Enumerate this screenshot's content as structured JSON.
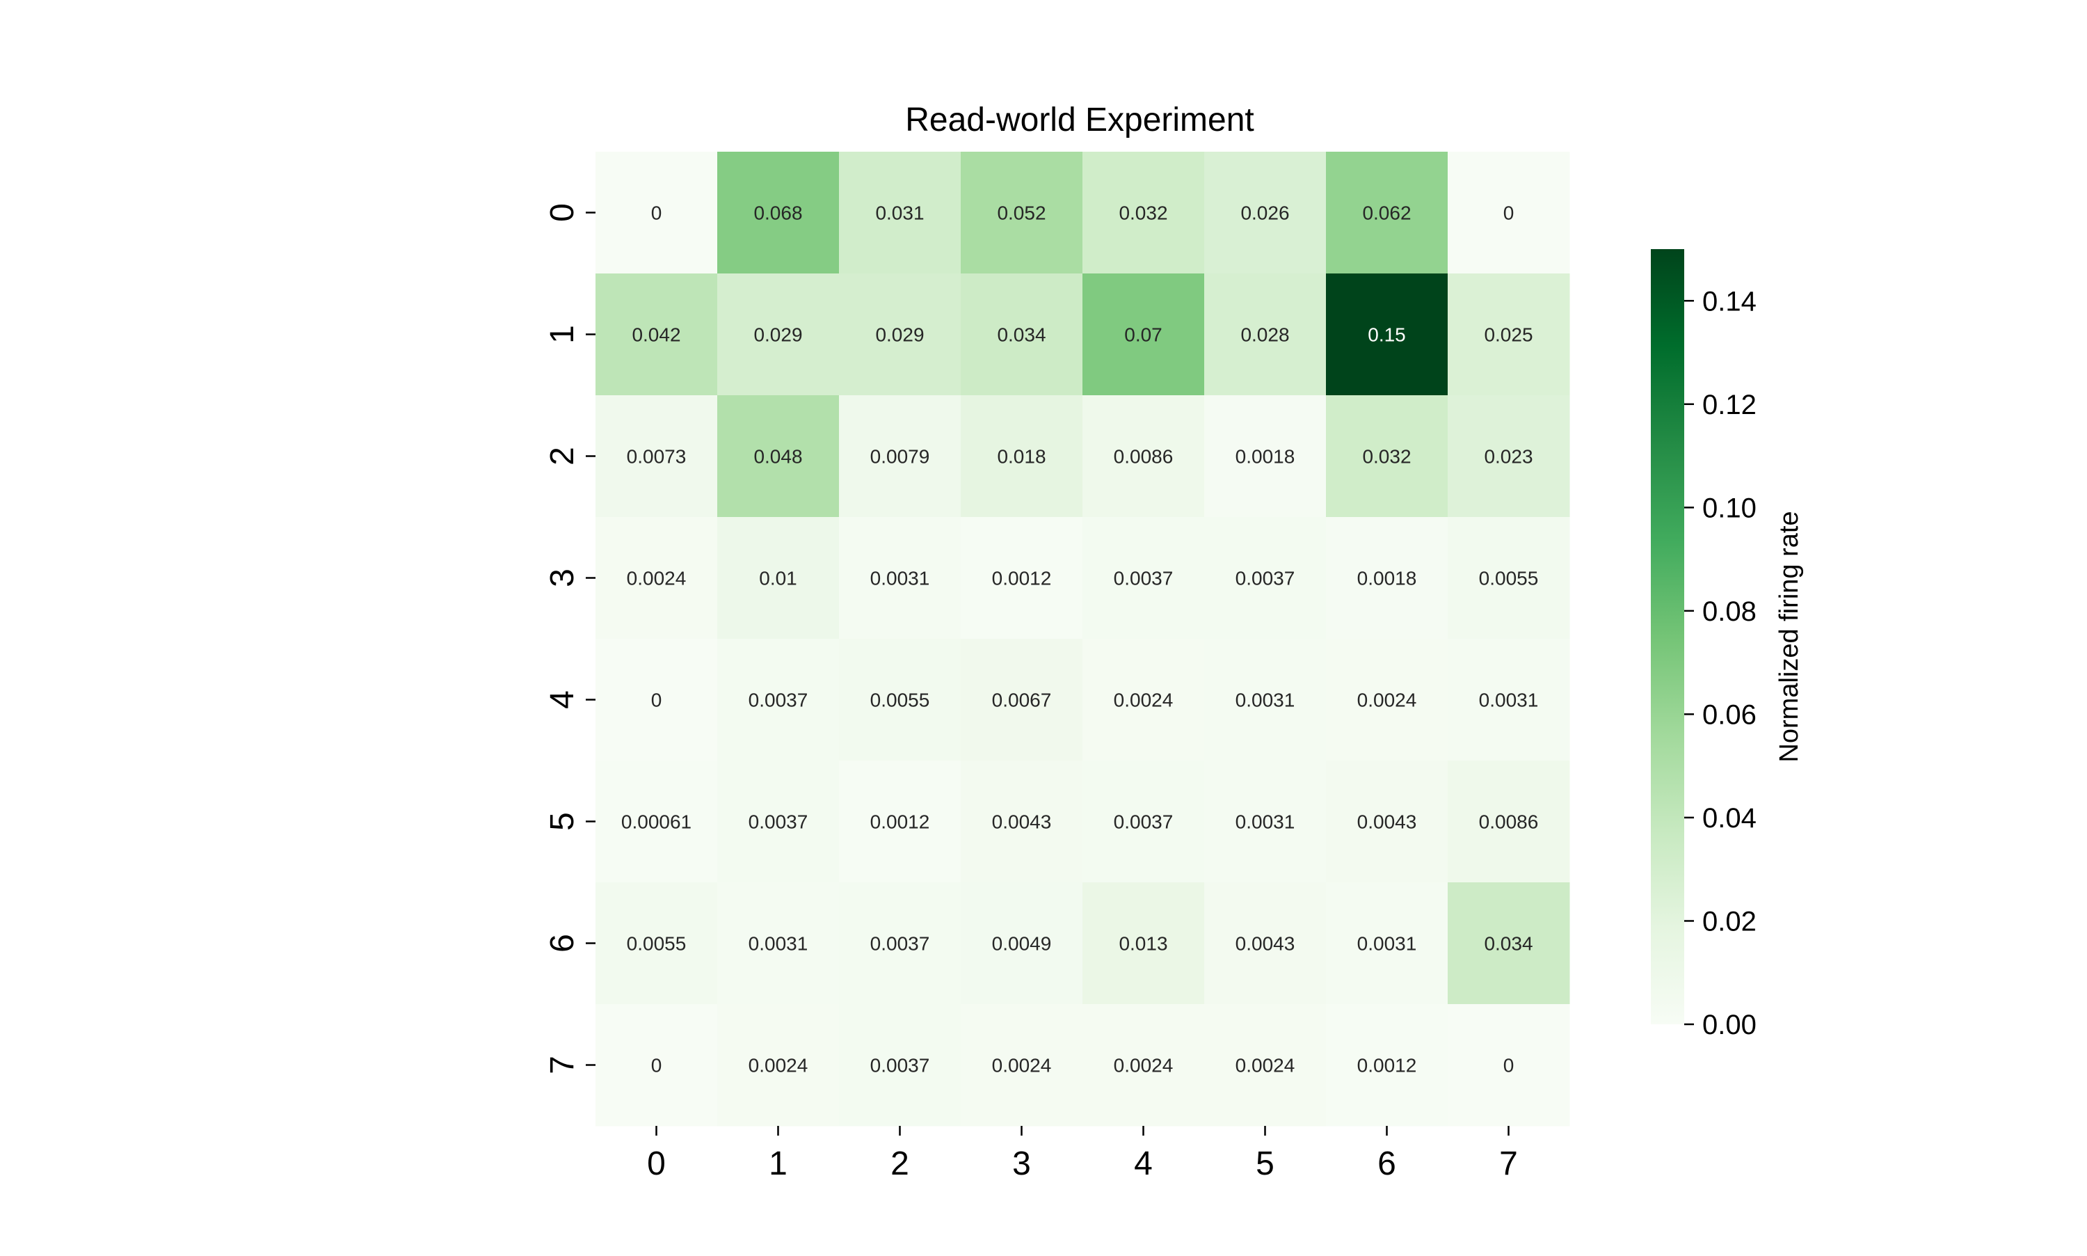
{
  "chart_data": {
    "type": "heatmap",
    "title": "Read-world Experiment",
    "xlabel": "",
    "ylabel": "",
    "x_labels": [
      "0",
      "1",
      "2",
      "3",
      "4",
      "5",
      "6",
      "7"
    ],
    "y_labels": [
      "0",
      "1",
      "2",
      "3",
      "4",
      "5",
      "6",
      "7"
    ],
    "values": [
      [
        0,
        0.068,
        0.031,
        0.052,
        0.032,
        0.026,
        0.062,
        0
      ],
      [
        0.042,
        0.029,
        0.029,
        0.034,
        0.07,
        0.028,
        0.15,
        0.025
      ],
      [
        0.0073,
        0.048,
        0.0079,
        0.018,
        0.0086,
        0.0018,
        0.032,
        0.023
      ],
      [
        0.0024,
        0.01,
        0.0031,
        0.0012,
        0.0037,
        0.0037,
        0.0018,
        0.0055
      ],
      [
        0,
        0.0037,
        0.0055,
        0.0067,
        0.0024,
        0.0031,
        0.0024,
        0.0031
      ],
      [
        0.00061,
        0.0037,
        0.0012,
        0.0043,
        0.0037,
        0.0031,
        0.0043,
        0.0086
      ],
      [
        0.0055,
        0.0031,
        0.0037,
        0.0049,
        0.013,
        0.0043,
        0.0031,
        0.034
      ],
      [
        0,
        0.0024,
        0.0037,
        0.0024,
        0.0024,
        0.0024,
        0.0012,
        0
      ]
    ],
    "annotations": [
      [
        "0",
        "0.068",
        "0.031",
        "0.052",
        "0.032",
        "0.026",
        "0.062",
        "0"
      ],
      [
        "0.042",
        "0.029",
        "0.029",
        "0.034",
        "0.07",
        "0.028",
        "0.15",
        "0.025"
      ],
      [
        "0.0073",
        "0.048",
        "0.0079",
        "0.018",
        "0.0086",
        "0.0018",
        "0.032",
        "0.023"
      ],
      [
        "0.0024",
        "0.01",
        "0.0031",
        "0.0012",
        "0.0037",
        "0.0037",
        "0.0018",
        "0.0055"
      ],
      [
        "0",
        "0.0037",
        "0.0055",
        "0.0067",
        "0.0024",
        "0.0031",
        "0.0024",
        "0.0031"
      ],
      [
        "0.00061",
        "0.0037",
        "0.0012",
        "0.0043",
        "0.0037",
        "0.0031",
        "0.0043",
        "0.0086"
      ],
      [
        "0.0055",
        "0.0031",
        "0.0037",
        "0.0049",
        "0.013",
        "0.0043",
        "0.0031",
        "0.034"
      ],
      [
        "0",
        "0.0024",
        "0.0037",
        "0.0024",
        "0.0024",
        "0.0024",
        "0.0012",
        "0"
      ]
    ],
    "colorbar": {
      "label": "Normalized firing rate",
      "range": [
        0,
        0.15
      ],
      "ticks": [
        0,
        0.02,
        0.04,
        0.06,
        0.08,
        0.1,
        0.12,
        0.14
      ],
      "tick_labels": [
        "0.00",
        "0.02",
        "0.04",
        "0.06",
        "0.08",
        "0.10",
        "0.12",
        "0.14"
      ],
      "position": "right",
      "colormap": "Greens",
      "colors": [
        "#f7fcf5",
        "#e5f5e0",
        "#c7e9c0",
        "#a1d99b",
        "#74c476",
        "#41ab5d",
        "#238b45",
        "#006d2c",
        "#00441b"
      ]
    },
    "grid": false
  }
}
